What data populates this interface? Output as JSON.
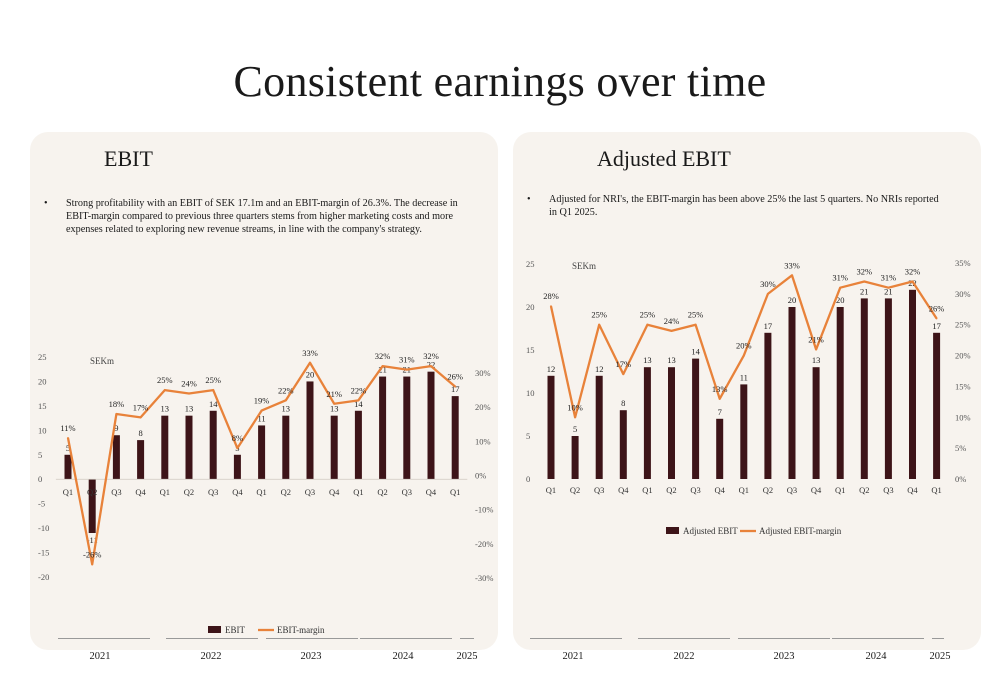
{
  "page": {
    "title": "Consistent earnings over time"
  },
  "colors": {
    "bar": "#3d1418",
    "line": "#e8823a",
    "panel_bg": "#f7f3ee"
  },
  "panels": [
    {
      "title": "EBIT",
      "bullet": "Strong profitability with an EBIT of SEK 17.1m and an EBIT-margin of 26.3%. The decrease in EBIT-margin compared to previous three quarters stems from higher marketing costs and more expenses related to exploring new revenue streams, in line with the company's strategy."
    },
    {
      "title": "Adjusted EBIT",
      "bullet": "Adjusted for NRI's, the EBIT-margin has been above 25% the last 5 quarters. No NRIs reported in Q1 2025."
    }
  ],
  "years": [
    "2021",
    "2022",
    "2023",
    "2024",
    "2025"
  ],
  "chart_data": [
    {
      "type": "bar",
      "unit_label": "SEKm",
      "categories": [
        "Q1",
        "Q2",
        "Q3",
        "Q4",
        "Q1",
        "Q2",
        "Q3",
        "Q4",
        "Q1",
        "Q2",
        "Q3",
        "Q4",
        "Q1",
        "Q2",
        "Q3",
        "Q4",
        "Q1"
      ],
      "series": [
        {
          "name": "EBIT",
          "type": "bar",
          "axis": "left",
          "values": [
            5,
            -11,
            9,
            8,
            13,
            13,
            14,
            5,
            11,
            13,
            20,
            13,
            14,
            21,
            21,
            22,
            17
          ],
          "labels": [
            "5",
            "-11",
            "9",
            "8",
            "13",
            "13",
            "14",
            "5",
            "11",
            "13",
            "20",
            "13",
            "14",
            "21",
            "21",
            "22",
            "17"
          ]
        },
        {
          "name": "EBIT-margin",
          "type": "line",
          "axis": "right",
          "values": [
            11,
            -26,
            18,
            17,
            25,
            24,
            25,
            8,
            19,
            22,
            33,
            21,
            22,
            32,
            31,
            32,
            26
          ],
          "labels": [
            "11%",
            "-26%",
            "18%",
            "17%",
            "25%",
            "24%",
            "25%",
            "8%",
            "19%",
            "22%",
            "33%",
            "21%",
            "22%",
            "32%",
            "31%",
            "32%",
            "26%"
          ]
        }
      ],
      "y_left": {
        "range": [
          -20,
          25
        ],
        "ticks": [
          "25",
          "20",
          "15",
          "10",
          "5",
          "0",
          "-5",
          "-10",
          "-15",
          "-20"
        ]
      },
      "y_right": {
        "range": [
          -30,
          30
        ],
        "ticks": [
          "30%",
          "20%",
          "10%",
          "0%",
          "-10%",
          "-20%",
          "-30%"
        ]
      },
      "legend": {
        "position": "bottom",
        "items": [
          "EBIT",
          "EBIT-margin"
        ]
      }
    },
    {
      "type": "bar",
      "unit_label": "SEKm",
      "categories": [
        "Q1",
        "Q2",
        "Q3",
        "Q4",
        "Q1",
        "Q2",
        "Q3",
        "Q4",
        "Q1",
        "Q2",
        "Q3",
        "Q4",
        "Q1",
        "Q2",
        "Q3",
        "Q4",
        "Q1"
      ],
      "series": [
        {
          "name": "Adjusted EBIT",
          "type": "bar",
          "axis": "left",
          "values": [
            12,
            5,
            12,
            8,
            13,
            13,
            14,
            7,
            11,
            17,
            20,
            13,
            20,
            21,
            21,
            22,
            17
          ],
          "labels": [
            "12",
            "5",
            "12",
            "8",
            "13",
            "13",
            "14",
            "7",
            "11",
            "17",
            "20",
            "13",
            "20",
            "21",
            "21",
            "22",
            "17"
          ]
        },
        {
          "name": "Adjusted EBIT-margin",
          "type": "line",
          "axis": "right",
          "values": [
            28,
            10,
            25,
            17,
            25,
            24,
            25,
            13,
            20,
            30,
            33,
            21,
            31,
            32,
            31,
            32,
            26
          ],
          "labels": [
            "28%",
            "10%",
            "25%",
            "17%",
            "25%",
            "24%",
            "25%",
            "13%",
            "20%",
            "30%",
            "33%",
            "21%",
            "31%",
            "32%",
            "31%",
            "32%",
            "26%"
          ]
        }
      ],
      "y_left": {
        "range": [
          0,
          25
        ],
        "ticks": [
          "25",
          "20",
          "15",
          "10",
          "5",
          "0"
        ]
      },
      "y_right": {
        "range": [
          0,
          35
        ],
        "ticks": [
          "35%",
          "30%",
          "25%",
          "20%",
          "15%",
          "10%",
          "5%",
          "0%"
        ]
      },
      "legend": {
        "position": "bottom",
        "items": [
          "Adjusted EBIT",
          "Adjusted EBIT-margin"
        ]
      }
    }
  ]
}
